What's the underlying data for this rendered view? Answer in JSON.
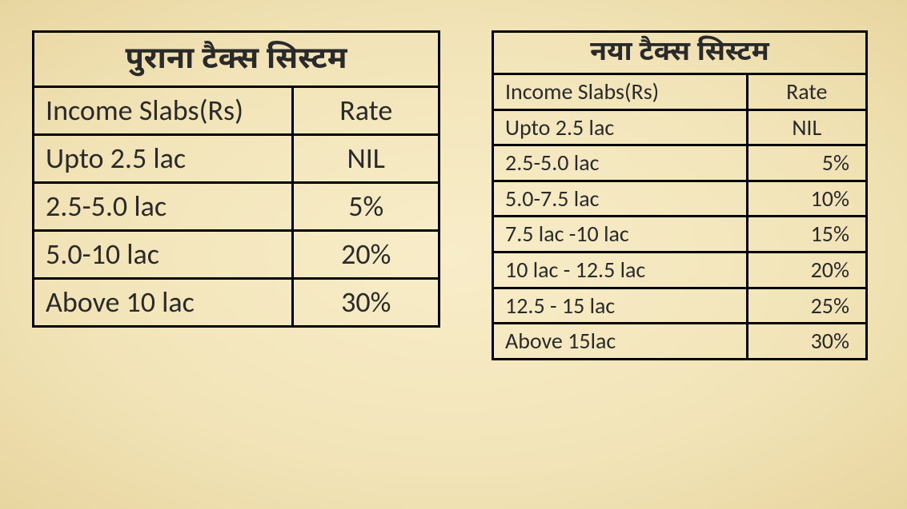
{
  "background_color": "#f5e7bd",
  "border_color": "#000000",
  "text_color": "#2a2a2a",
  "old": {
    "title": "पुराना टैक्स सिस्टम",
    "columns": {
      "slab": "Income Slabs(Rs)",
      "rate": "Rate"
    },
    "rows": [
      {
        "slab": "Upto 2.5 lac",
        "rate": "NIL"
      },
      {
        "slab": "2.5-5.0 lac",
        "rate": "5%"
      },
      {
        "slab": "5.0-10 lac",
        "rate": "20%"
      },
      {
        "slab": "Above 10 lac",
        "rate": "30%"
      }
    ],
    "title_fontsize": 38,
    "cell_fontsize": 36
  },
  "new": {
    "title": "नया टैक्स सिस्टम",
    "columns": {
      "slab": "Income Slabs(Rs)",
      "rate": "Rate"
    },
    "rows": [
      {
        "slab": "Upto 2.5 lac",
        "rate": "NIL"
      },
      {
        "slab": "2.5-5.0 lac",
        "rate": "5%"
      },
      {
        "slab": "5.0-7.5 lac",
        "rate": "10%"
      },
      {
        "slab": "7.5 lac -10 lac",
        "rate": "15%"
      },
      {
        "slab": "10 lac - 12.5 lac",
        "rate": "20%"
      },
      {
        "slab": "12.5 - 15 lac",
        "rate": "25%"
      },
      {
        "slab": "Above 15lac",
        "rate": "30%"
      }
    ],
    "title_fontsize": 34,
    "cell_fontsize": 28
  }
}
